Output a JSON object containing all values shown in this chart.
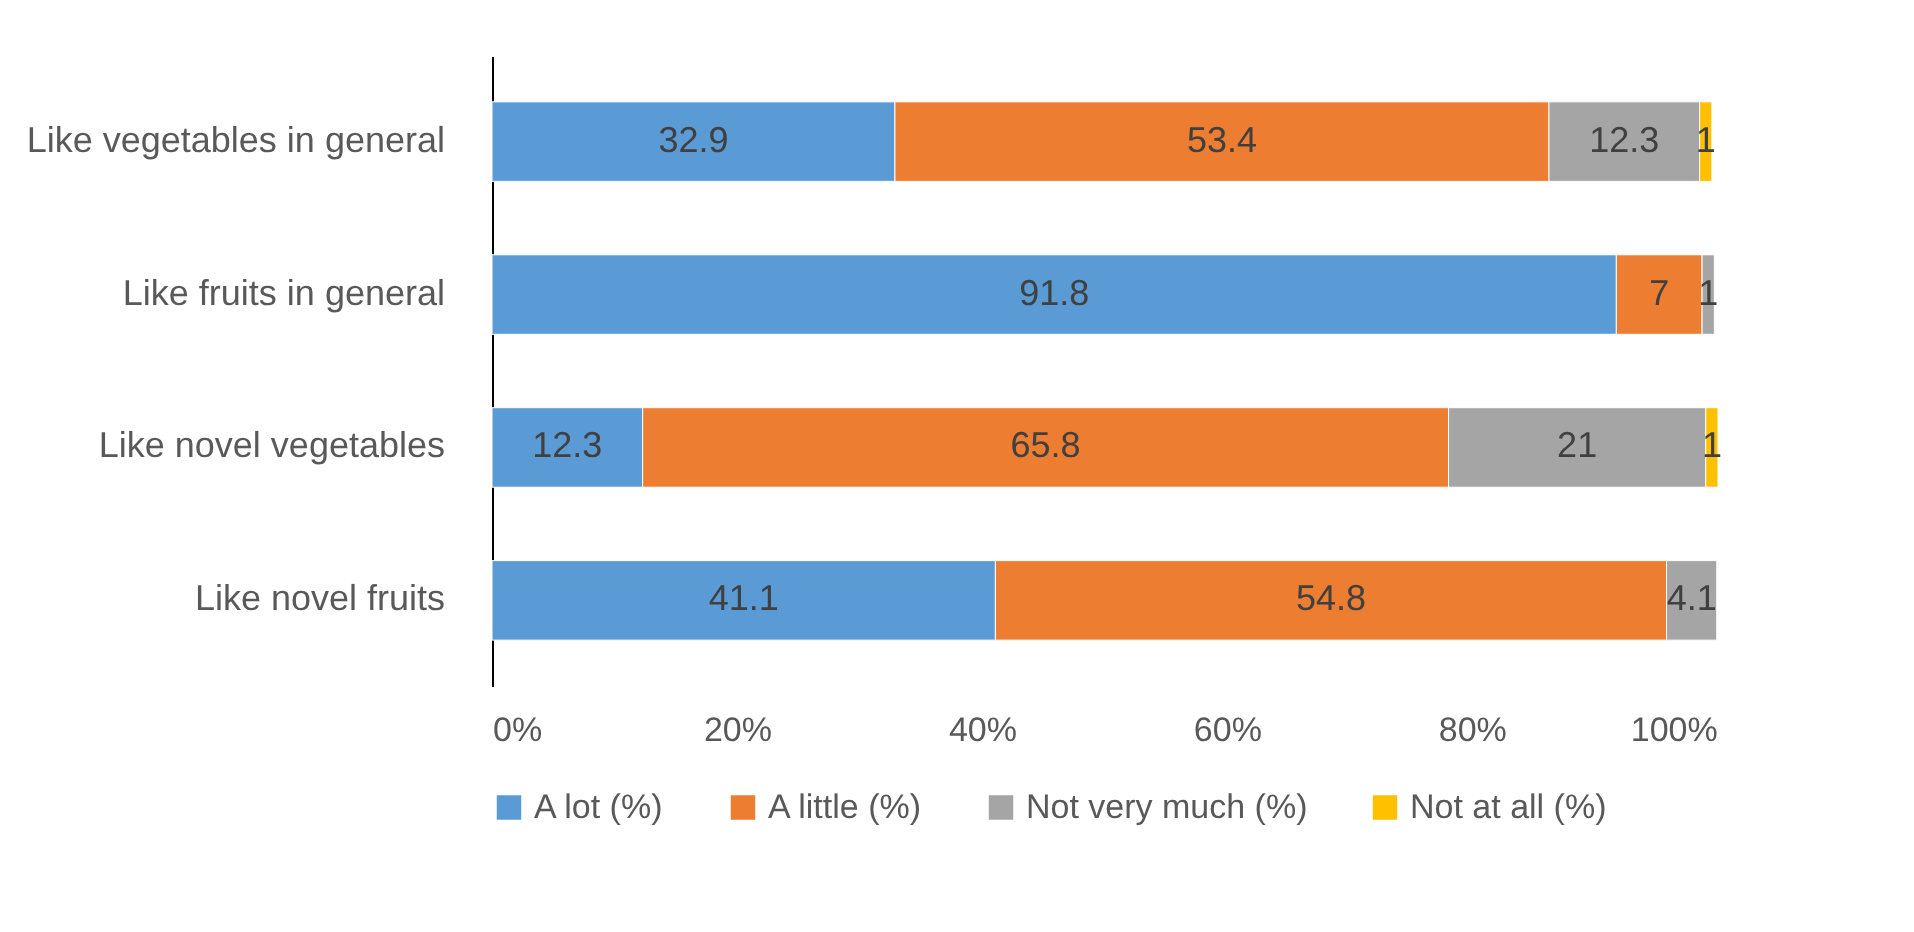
{
  "chart_data": {
    "type": "bar",
    "orientation": "horizontal",
    "stacked": true,
    "categories": [
      "Like vegetables in general",
      "Like fruits in general",
      "Like novel vegetables",
      "Like novel fruits"
    ],
    "series": [
      {
        "name": "A lot (%)",
        "color": "#5b9bd5",
        "values": [
          32.9,
          91.8,
          12.3,
          41.1
        ]
      },
      {
        "name": "A little (%)",
        "color": "#ed7d31",
        "values": [
          53.4,
          7,
          65.8,
          54.8
        ]
      },
      {
        "name": "Not very much (%)",
        "color": "#a5a5a5",
        "values": [
          12.3,
          1,
          21,
          4.1
        ]
      },
      {
        "name": "Not at all (%)",
        "color": "#ffc000",
        "values": [
          1,
          null,
          1,
          null
        ]
      }
    ],
    "xlim": [
      0,
      100.1
    ],
    "xticks": [
      {
        "value": 0,
        "label": "0%"
      },
      {
        "value": 20,
        "label": "20%"
      },
      {
        "value": 40,
        "label": "40%"
      },
      {
        "value": 60,
        "label": "60%"
      },
      {
        "value": 80,
        "label": "80%"
      },
      {
        "value": 100,
        "label": "100%"
      }
    ],
    "data_labels": true,
    "grid": false,
    "legend": "bottom"
  }
}
